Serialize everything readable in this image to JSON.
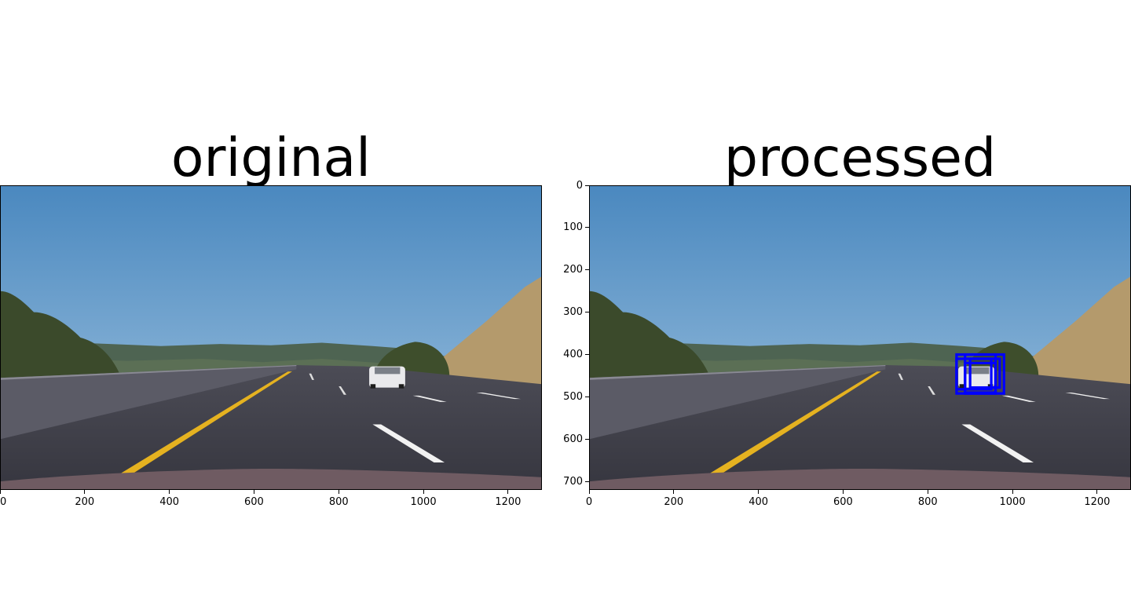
{
  "panels": [
    {
      "title": "original",
      "x_ticks": [
        0,
        200,
        400,
        600,
        800,
        1000,
        1200
      ],
      "y_ticks": []
    },
    {
      "title": "processed",
      "x_ticks": [
        0,
        200,
        400,
        600,
        800,
        1000,
        1200
      ],
      "y_ticks": [
        0,
        100,
        200,
        300,
        400,
        500,
        600,
        700
      ],
      "detections": [
        {
          "x1": 868,
          "y1": 400,
          "x2": 960,
          "y2": 492
        },
        {
          "x1": 888,
          "y1": 400,
          "x2": 980,
          "y2": 492
        },
        {
          "x1": 888,
          "y1": 420,
          "x2": 960,
          "y2": 490
        },
        {
          "x1": 900,
          "y1": 410,
          "x2": 970,
          "y2": 478
        },
        {
          "x1": 868,
          "y1": 410,
          "x2": 950,
          "y2": 482
        }
      ]
    }
  ],
  "image": {
    "width": 1280,
    "height": 720
  },
  "colors": {
    "sky_top": "#4a88bf",
    "sky_bottom": "#a4c6e1",
    "hills": "#4e6452",
    "dry_hill": "#b49a6c",
    "trees": "#3e4e2c",
    "road": "#3f3f49",
    "barrier": "#5b5b66",
    "yellow_line": "#e5b220",
    "white_line": "#f2f2f2",
    "hood": "#6f5b62",
    "detection_box": "#0000ff"
  }
}
